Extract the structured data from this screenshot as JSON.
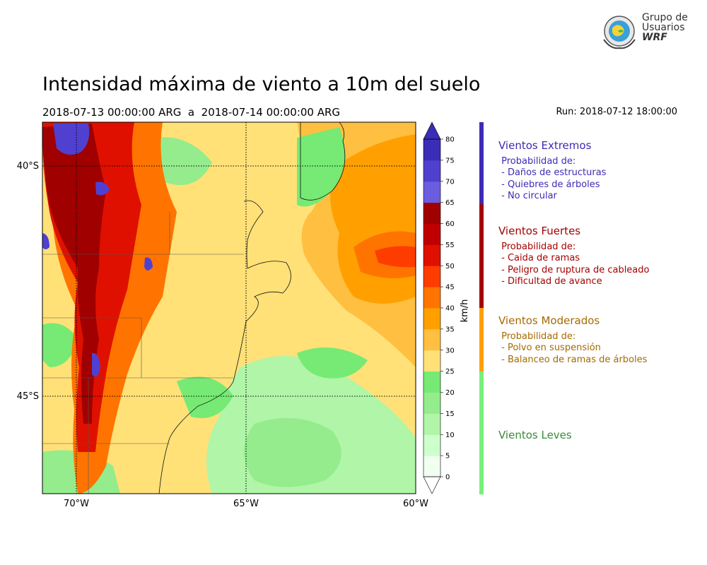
{
  "title": "Intensidad máxima de viento a 10m del suelo",
  "period": "2018-07-13 00:00:00 ARG  a  2018-07-14 00:00:00 ARG",
  "run": "Run: 2018-07-12 18:00:00",
  "logo": {
    "line1": "Grupo de",
    "line2": "Usuarios",
    "line3": "WRF"
  },
  "map": {
    "lon_ticks": [
      "70°W",
      "65°W",
      "60°W"
    ],
    "lat_ticks": [
      "40°S",
      "45°S"
    ],
    "lon_range": [
      -71,
      -60
    ],
    "lat_range": [
      -47.1,
      -39.0
    ]
  },
  "colorbar": {
    "unit": "km/h",
    "levels": [
      "0",
      "5",
      "10",
      "15",
      "20",
      "25",
      "30",
      "35",
      "40",
      "45",
      "50",
      "55",
      "60",
      "65",
      "70",
      "75",
      "80"
    ],
    "colors": [
      "#f0fff0",
      "#ccffcc",
      "#b0f5a8",
      "#94ec8c",
      "#76ea74",
      "#ffe178",
      "#ffbf40",
      "#ffa000",
      "#ff7400",
      "#ff3c00",
      "#e01000",
      "#c00000",
      "#a00000",
      "#6b5de0",
      "#5040d0",
      "#3a2db8"
    ]
  },
  "categories": [
    {
      "title": "Vientos Extremos",
      "color": "#3d2bb5",
      "lines": [
        " Probabilidad de:",
        " - Daños de estructuras",
        " - Quiebres de árboles",
        " - No circular"
      ]
    },
    {
      "title": "Vientos Fuertes",
      "color": "#a50000",
      "lines": [
        " Probabilidad de:",
        " - Caida de ramas",
        " - Peligro de ruptura de cableado",
        " - Dificultad de avance"
      ]
    },
    {
      "title": "Vientos Moderados",
      "color": "#a66a00",
      "bar_color": "#ffa000",
      "lines": [
        " Probabilidad de:",
        " - Polvo en suspensión",
        " - Balanceo de ramas de árboles"
      ]
    },
    {
      "title": "Vientos Leves",
      "color": "#3a8a3a",
      "bar_color": "#76f07a",
      "lines": []
    }
  ]
}
